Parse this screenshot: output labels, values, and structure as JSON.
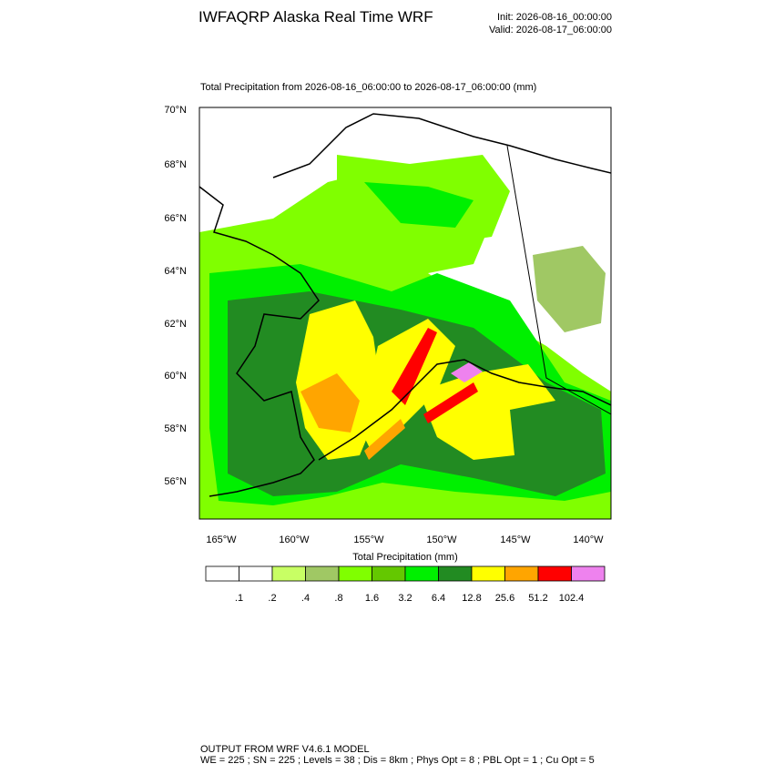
{
  "header": {
    "title": "IWFAQRP Alaska Real Time WRF",
    "init": "Init: 2026-08-16_00:00:00",
    "valid": "Valid: 2026-08-17_06:00:00"
  },
  "map": {
    "title": "Total Precipitation from 2026-08-16_06:00:00 to 2026-08-17_06:00:00   (mm)",
    "lat_labels": [
      "70°N",
      "68°N",
      "66°N",
      "64°N",
      "62°N",
      "60°N",
      "58°N",
      "56°N"
    ],
    "lon_labels": [
      "165°W",
      "160°W",
      "155°W",
      "150°W",
      "145°W",
      "140°W"
    ]
  },
  "colorbar": {
    "title": "Total Precipitation  (mm)",
    "colors": [
      "#ffffff",
      "#ffffff",
      "#c8ff64",
      "#a0c864",
      "#80ff00",
      "#64c800",
      "#00f000",
      "#228b22",
      "#ffff00",
      "#ffa500",
      "#ff0000",
      "#ee82ee"
    ],
    "labels": [
      ".1",
      ".2",
      ".4",
      ".8",
      "1.6",
      "3.2",
      "6.4",
      "12.8",
      "25.6",
      "51.2",
      "102.4"
    ]
  },
  "footer": {
    "line1": "OUTPUT FROM WRF V4.6.1 MODEL",
    "line2": "WE = 225 ; SN = 225 ; Levels = 38 ; Dis = 8km ; Phys Opt = 8 ; PBL Opt = 1 ; Cu Opt = 5"
  }
}
